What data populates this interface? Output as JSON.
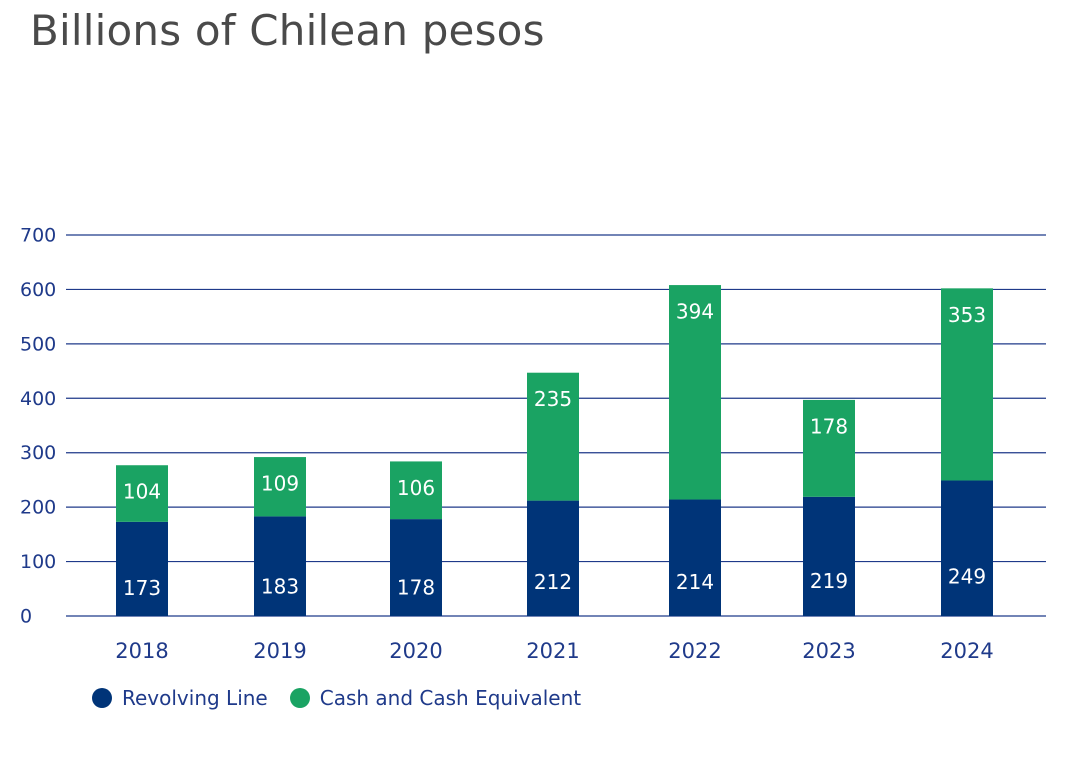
{
  "chart_data": {
    "type": "bar",
    "stacked": true,
    "title": "Billions of Chilean pesos",
    "categories": [
      "2018",
      "2019",
      "2020",
      "2021",
      "2022",
      "2023",
      "2024"
    ],
    "series": [
      {
        "name": "Revolving Line",
        "values": [
          173,
          183,
          178,
          212,
          214,
          219,
          249
        ],
        "color": "#003478"
      },
      {
        "name": "Cash and Cash Equivalent",
        "values": [
          104,
          109,
          106,
          235,
          394,
          178,
          353
        ],
        "color": "#1aa363"
      }
    ],
    "ylim": [
      0,
      700
    ],
    "yticks": [
      0,
      100,
      200,
      300,
      400,
      500,
      600,
      700
    ],
    "grid": true,
    "legend_position": "bottom-left",
    "axis_color": "#1f3a8a"
  }
}
